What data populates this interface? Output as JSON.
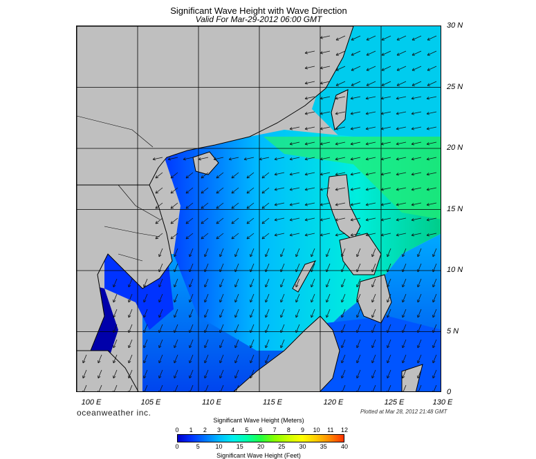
{
  "title": "Significant Wave Height with Wave Direction",
  "subtitle": "Valid For Mar-29-2012 06:00 GMT",
  "lat_labels": [
    "30 N",
    "25 N",
    "20 N",
    "15 N",
    "10 N",
    "5 N",
    "0"
  ],
  "lon_labels": [
    "100 E",
    "105 E",
    "110 E",
    "115 E",
    "120 E",
    "125 E",
    "130 E"
  ],
  "brand": "oceanweather inc.",
  "plotted": "Plotted at Mar 28, 2012 21:48 GMT",
  "legend": {
    "meters_title": "Significant Wave Height (Meters)",
    "feet_title": "Significant Wave Height (Feet)",
    "meters_ticks": [
      "0",
      "1",
      "2",
      "3",
      "4",
      "5",
      "6",
      "7",
      "8",
      "9",
      "10",
      "11",
      "12"
    ],
    "feet_ticks": [
      "0",
      "5",
      "10",
      "15",
      "20",
      "25",
      "30",
      "35",
      "40"
    ]
  },
  "colors": {
    "land": "#bfbfbf",
    "coast": "#000000",
    "scale": [
      "#0000cc",
      "#0033ff",
      "#0077ff",
      "#00bbff",
      "#00eeee",
      "#00ffaa",
      "#22ff44",
      "#88ff00",
      "#ccff00",
      "#ffff00",
      "#ffcc00",
      "#ff8800",
      "#ff3300"
    ]
  }
}
